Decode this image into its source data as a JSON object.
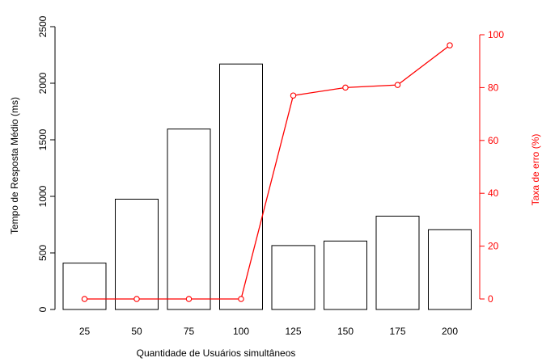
{
  "chart_data": {
    "type": "bar",
    "categories": [
      "25",
      "50",
      "75",
      "100",
      "125",
      "150",
      "175",
      "200"
    ],
    "xlabel": "Quantidade de Usuários simultâneos",
    "ylabel": "Tempo de Resposta Médio (ms)",
    "ylabel_right": "Taxa de erro (%)",
    "ylim": [
      0,
      2500
    ],
    "ylim_right": [
      0,
      100
    ],
    "yticks": [
      0,
      500,
      1000,
      1500,
      2000,
      2500
    ],
    "yticks_right": [
      0,
      20,
      40,
      60,
      80,
      100
    ],
    "grid": false,
    "series": [
      {
        "type": "bar",
        "axis": "left",
        "values": [
          410,
          975,
          1595,
          2170,
          565,
          605,
          825,
          705
        ]
      },
      {
        "type": "line",
        "axis": "right",
        "values": [
          0,
          0,
          0,
          0,
          77,
          80,
          81,
          96
        ]
      }
    ],
    "colors": {
      "bars_stroke": "#000000",
      "bars_fill": "#ffffff",
      "line": "#ff0000"
    }
  }
}
